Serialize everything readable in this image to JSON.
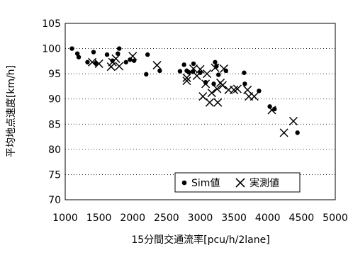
{
  "chart_data": {
    "type": "scatter",
    "title": "",
    "xlabel": "15分間交通流率[pcu/h/2lane]",
    "ylabel": "平均地点速度[km/h]",
    "xlim": [
      1000,
      5000
    ],
    "ylim": [
      70,
      105
    ],
    "x_ticks": [
      "1000",
      "1500",
      "2000",
      "2500",
      "3000",
      "3500",
      "4000",
      "4500",
      "5000"
    ],
    "y_ticks": [
      "70",
      "75",
      "80",
      "85",
      "90",
      "95",
      "100",
      "105"
    ],
    "grid": "horizontal dotted",
    "legend_position": "bottom-right",
    "series": [
      {
        "name": "Sim値",
        "marker": "dot",
        "points": [
          [
            1100,
            100.0
          ],
          [
            1180,
            99.0
          ],
          [
            1200,
            98.3
          ],
          [
            1330,
            97.3
          ],
          [
            1420,
            99.3
          ],
          [
            1450,
            97.1
          ],
          [
            1620,
            98.8
          ],
          [
            1700,
            97.6
          ],
          [
            1780,
            99.0
          ],
          [
            1800,
            100.0
          ],
          [
            1900,
            97.3
          ],
          [
            1960,
            97.8
          ],
          [
            2020,
            97.6
          ],
          [
            2200,
            94.9
          ],
          [
            2220,
            98.8
          ],
          [
            2400,
            95.6
          ],
          [
            2700,
            95.5
          ],
          [
            2760,
            96.8
          ],
          [
            2800,
            95.6
          ],
          [
            2830,
            95.3
          ],
          [
            2890,
            95.4
          ],
          [
            2900,
            97.0
          ],
          [
            3000,
            95.2
          ],
          [
            3080,
            93.3
          ],
          [
            3200,
            93.0
          ],
          [
            3220,
            97.3
          ],
          [
            3240,
            96.5
          ],
          [
            3270,
            94.8
          ],
          [
            3380,
            95.6
          ],
          [
            3650,
            95.2
          ],
          [
            3660,
            93.0
          ],
          [
            3870,
            91.6
          ],
          [
            4030,
            88.5
          ],
          [
            4100,
            88.0
          ],
          [
            4440,
            83.3
          ]
        ]
      },
      {
        "name": "実測値",
        "marker": "x",
        "points": [
          [
            1400,
            97.3
          ],
          [
            1500,
            97.0
          ],
          [
            1680,
            96.4
          ],
          [
            1700,
            97.3
          ],
          [
            1750,
            98.0
          ],
          [
            1800,
            96.5
          ],
          [
            2000,
            98.5
          ],
          [
            2360,
            96.7
          ],
          [
            2800,
            94.2
          ],
          [
            2800,
            93.6
          ],
          [
            2900,
            96.0
          ],
          [
            2950,
            94.6
          ],
          [
            3000,
            95.9
          ],
          [
            3040,
            90.5
          ],
          [
            3080,
            93.0
          ],
          [
            3100,
            95.0
          ],
          [
            3140,
            89.3
          ],
          [
            3170,
            91.2
          ],
          [
            3220,
            96.2
          ],
          [
            3250,
            92.0
          ],
          [
            3260,
            89.3
          ],
          [
            3300,
            93.2
          ],
          [
            3330,
            92.7
          ],
          [
            3350,
            96.0
          ],
          [
            3420,
            91.8
          ],
          [
            3500,
            91.8
          ],
          [
            3550,
            92.0
          ],
          [
            3700,
            91.8
          ],
          [
            3720,
            90.5
          ],
          [
            3800,
            90.5
          ],
          [
            4060,
            87.8
          ],
          [
            4240,
            83.3
          ],
          [
            4380,
            85.6
          ]
        ]
      }
    ]
  }
}
